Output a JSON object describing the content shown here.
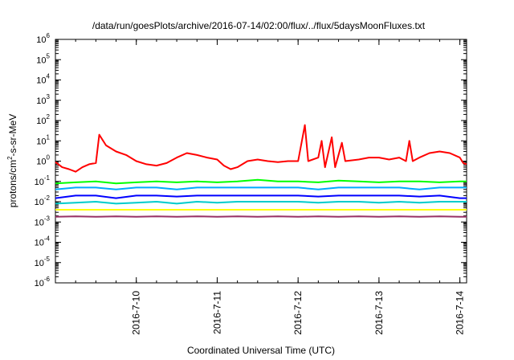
{
  "chart_data": {
    "type": "line",
    "title": "/data/run/goesPlots/archive/2016-07-14/02:00/flux/../flux/5daysMoonFluxes.txt",
    "xlabel": "Coordinated Universal Time (UTC)",
    "ylabel": {
      "base": "protons/cm",
      "sup": "2",
      "rest": "-s-sr-MeV"
    },
    "y_scale": "log",
    "ylim": [
      1e-06,
      1000000.0
    ],
    "xlim": [
      "2016-07-09T00:00",
      "2016-07-14T02:00"
    ],
    "grid": false,
    "legend": "none",
    "y_ticks": [
      {
        "exp": -6,
        "base": "10",
        "sup": "-6"
      },
      {
        "exp": -5,
        "base": "10",
        "sup": "-5"
      },
      {
        "exp": -4,
        "base": "10",
        "sup": "-4"
      },
      {
        "exp": -3,
        "base": "10",
        "sup": "-3"
      },
      {
        "exp": -2,
        "base": "10",
        "sup": "-2"
      },
      {
        "exp": -1,
        "base": "10",
        "sup": "-1"
      },
      {
        "exp": 0,
        "base": "10",
        "sup": "0"
      },
      {
        "exp": 1,
        "base": "10",
        "sup": "1"
      },
      {
        "exp": 2,
        "base": "10",
        "sup": "2"
      },
      {
        "exp": 3,
        "base": "10",
        "sup": "3"
      },
      {
        "exp": 4,
        "base": "10",
        "sup": "4"
      },
      {
        "exp": 5,
        "base": "10",
        "sup": "5"
      },
      {
        "exp": 6,
        "base": "10",
        "sup": "6"
      }
    ],
    "x_ticks": [
      {
        "label": "2016-7-10",
        "at": "2016-07-10T00:00"
      },
      {
        "label": "2016-7-11",
        "at": "2016-07-11T00:00"
      },
      {
        "label": "2016-7-12",
        "at": "2016-07-12T00:00"
      },
      {
        "label": "2016-7-13",
        "at": "2016-07-13T00:00"
      },
      {
        "label": "2016-7-14",
        "at": "2016-07-14T00:00"
      }
    ],
    "series": [
      {
        "color": "#00ff00",
        "points": [
          [
            "2016-07-09T00:00",
            0.08
          ],
          [
            "2016-07-09T06:00",
            0.09
          ],
          [
            "2016-07-09T12:00",
            0.1
          ],
          [
            "2016-07-09T18:00",
            0.08
          ],
          [
            "2016-07-10T00:00",
            0.09
          ],
          [
            "2016-07-10T06:00",
            0.1
          ],
          [
            "2016-07-10T12:00",
            0.09
          ],
          [
            "2016-07-10T18:00",
            0.1
          ],
          [
            "2016-07-11T00:00",
            0.09
          ],
          [
            "2016-07-11T06:00",
            0.1
          ],
          [
            "2016-07-11T12:00",
            0.12
          ],
          [
            "2016-07-11T18:00",
            0.1
          ],
          [
            "2016-07-12T00:00",
            0.1
          ],
          [
            "2016-07-12T06:00",
            0.09
          ],
          [
            "2016-07-12T12:00",
            0.11
          ],
          [
            "2016-07-12T18:00",
            0.1
          ],
          [
            "2016-07-13T00:00",
            0.09
          ],
          [
            "2016-07-13T06:00",
            0.1
          ],
          [
            "2016-07-13T12:00",
            0.1
          ],
          [
            "2016-07-13T18:00",
            0.09
          ],
          [
            "2016-07-14T00:00",
            0.1
          ],
          [
            "2016-07-14T02:00",
            0.1
          ]
        ]
      },
      {
        "color": "#00aaff",
        "points": [
          [
            "2016-07-09T00:00",
            0.04
          ],
          [
            "2016-07-09T06:00",
            0.05
          ],
          [
            "2016-07-09T12:00",
            0.05
          ],
          [
            "2016-07-09T18:00",
            0.04
          ],
          [
            "2016-07-10T00:00",
            0.05
          ],
          [
            "2016-07-10T06:00",
            0.05
          ],
          [
            "2016-07-10T12:00",
            0.04
          ],
          [
            "2016-07-10T18:00",
            0.05
          ],
          [
            "2016-07-11T00:00",
            0.05
          ],
          [
            "2016-07-11T06:00",
            0.05
          ],
          [
            "2016-07-11T12:00",
            0.05
          ],
          [
            "2016-07-11T18:00",
            0.05
          ],
          [
            "2016-07-12T00:00",
            0.05
          ],
          [
            "2016-07-12T06:00",
            0.04
          ],
          [
            "2016-07-12T12:00",
            0.05
          ],
          [
            "2016-07-12T18:00",
            0.05
          ],
          [
            "2016-07-13T00:00",
            0.05
          ],
          [
            "2016-07-13T06:00",
            0.05
          ],
          [
            "2016-07-13T12:00",
            0.04
          ],
          [
            "2016-07-13T18:00",
            0.05
          ],
          [
            "2016-07-14T00:00",
            0.05
          ],
          [
            "2016-07-14T02:00",
            0.05
          ]
        ]
      },
      {
        "color": "#0000ff",
        "points": [
          [
            "2016-07-09T00:00",
            0.015
          ],
          [
            "2016-07-09T06:00",
            0.02
          ],
          [
            "2016-07-09T12:00",
            0.02
          ],
          [
            "2016-07-09T18:00",
            0.015
          ],
          [
            "2016-07-10T00:00",
            0.02
          ],
          [
            "2016-07-10T06:00",
            0.02
          ],
          [
            "2016-07-10T12:00",
            0.018
          ],
          [
            "2016-07-10T18:00",
            0.02
          ],
          [
            "2016-07-11T00:00",
            0.02
          ],
          [
            "2016-07-11T06:00",
            0.02
          ],
          [
            "2016-07-11T12:00",
            0.02
          ],
          [
            "2016-07-11T18:00",
            0.02
          ],
          [
            "2016-07-12T00:00",
            0.02
          ],
          [
            "2016-07-12T06:00",
            0.018
          ],
          [
            "2016-07-12T12:00",
            0.02
          ],
          [
            "2016-07-12T18:00",
            0.02
          ],
          [
            "2016-07-13T00:00",
            0.02
          ],
          [
            "2016-07-13T06:00",
            0.02
          ],
          [
            "2016-07-13T12:00",
            0.018
          ],
          [
            "2016-07-13T18:00",
            0.02
          ],
          [
            "2016-07-14T00:00",
            0.015
          ],
          [
            "2016-07-14T02:00",
            0.015
          ]
        ]
      },
      {
        "color": "#00cccc",
        "points": [
          [
            "2016-07-09T00:00",
            0.008
          ],
          [
            "2016-07-09T06:00",
            0.009
          ],
          [
            "2016-07-09T12:00",
            0.01
          ],
          [
            "2016-07-09T18:00",
            0.008
          ],
          [
            "2016-07-10T00:00",
            0.009
          ],
          [
            "2016-07-10T06:00",
            0.01
          ],
          [
            "2016-07-10T12:00",
            0.008
          ],
          [
            "2016-07-10T18:00",
            0.01
          ],
          [
            "2016-07-11T00:00",
            0.009
          ],
          [
            "2016-07-11T06:00",
            0.01
          ],
          [
            "2016-07-11T12:00",
            0.01
          ],
          [
            "2016-07-11T18:00",
            0.01
          ],
          [
            "2016-07-12T00:00",
            0.01
          ],
          [
            "2016-07-12T06:00",
            0.009
          ],
          [
            "2016-07-12T12:00",
            0.01
          ],
          [
            "2016-07-12T18:00",
            0.01
          ],
          [
            "2016-07-13T00:00",
            0.009
          ],
          [
            "2016-07-13T06:00",
            0.01
          ],
          [
            "2016-07-13T12:00",
            0.009
          ],
          [
            "2016-07-13T18:00",
            0.01
          ],
          [
            "2016-07-14T00:00",
            0.01
          ],
          [
            "2016-07-14T02:00",
            0.01
          ]
        ]
      },
      {
        "color": "#ffff00",
        "points": [
          [
            "2016-07-09T00:00",
            0.004
          ],
          [
            "2016-07-09T12:00",
            0.004
          ],
          [
            "2016-07-10T00:00",
            0.004
          ],
          [
            "2016-07-10T12:00",
            0.004
          ],
          [
            "2016-07-11T00:00",
            0.004
          ],
          [
            "2016-07-11T12:00",
            0.004
          ],
          [
            "2016-07-12T00:00",
            0.004
          ],
          [
            "2016-07-12T12:00",
            0.004
          ],
          [
            "2016-07-13T00:00",
            0.004
          ],
          [
            "2016-07-13T12:00",
            0.004
          ],
          [
            "2016-07-14T00:00",
            0.004
          ],
          [
            "2016-07-14T02:00",
            0.004
          ]
        ]
      },
      {
        "color": "#993366",
        "points": [
          [
            "2016-07-09T00:00",
            0.0018
          ],
          [
            "2016-07-09T06:00",
            0.0019
          ],
          [
            "2016-07-09T12:00",
            0.0018
          ],
          [
            "2016-07-09T18:00",
            0.0019
          ],
          [
            "2016-07-10T00:00",
            0.0018
          ],
          [
            "2016-07-10T06:00",
            0.0019
          ],
          [
            "2016-07-10T12:00",
            0.0018
          ],
          [
            "2016-07-10T18:00",
            0.0019
          ],
          [
            "2016-07-11T00:00",
            0.0018
          ],
          [
            "2016-07-11T06:00",
            0.0019
          ],
          [
            "2016-07-11T12:00",
            0.0018
          ],
          [
            "2016-07-11T18:00",
            0.0019
          ],
          [
            "2016-07-12T00:00",
            0.0018
          ],
          [
            "2016-07-12T06:00",
            0.0019
          ],
          [
            "2016-07-12T12:00",
            0.0018
          ],
          [
            "2016-07-12T18:00",
            0.0019
          ],
          [
            "2016-07-13T00:00",
            0.0018
          ],
          [
            "2016-07-13T06:00",
            0.0019
          ],
          [
            "2016-07-13T12:00",
            0.0018
          ],
          [
            "2016-07-13T18:00",
            0.0019
          ],
          [
            "2016-07-14T00:00",
            0.0018
          ],
          [
            "2016-07-14T02:00",
            0.0018
          ]
        ]
      },
      {
        "color": "#ff0000",
        "points": [
          [
            "2016-07-09T00:00",
            0.9
          ],
          [
            "2016-07-09T02:00",
            0.5
          ],
          [
            "2016-07-09T04:00",
            0.4
          ],
          [
            "2016-07-09T06:00",
            0.3
          ],
          [
            "2016-07-09T08:00",
            0.5
          ],
          [
            "2016-07-09T10:00",
            0.7
          ],
          [
            "2016-07-09T12:00",
            0.8
          ],
          [
            "2016-07-09T13:00",
            20
          ],
          [
            "2016-07-09T15:00",
            6
          ],
          [
            "2016-07-09T18:00",
            3
          ],
          [
            "2016-07-09T21:00",
            2
          ],
          [
            "2016-07-10T00:00",
            1
          ],
          [
            "2016-07-10T03:00",
            0.7
          ],
          [
            "2016-07-10T06:00",
            0.6
          ],
          [
            "2016-07-10T09:00",
            0.8
          ],
          [
            "2016-07-10T12:00",
            1.5
          ],
          [
            "2016-07-10T15:00",
            2.5
          ],
          [
            "2016-07-10T18:00",
            2
          ],
          [
            "2016-07-10T21:00",
            1.5
          ],
          [
            "2016-07-11T00:00",
            1.2
          ],
          [
            "2016-07-11T02:00",
            0.6
          ],
          [
            "2016-07-11T04:00",
            0.4
          ],
          [
            "2016-07-11T06:00",
            0.5
          ],
          [
            "2016-07-11T09:00",
            1
          ],
          [
            "2016-07-11T12:00",
            1.2
          ],
          [
            "2016-07-11T15:00",
            1
          ],
          [
            "2016-07-11T18:00",
            0.9
          ],
          [
            "2016-07-11T21:00",
            1
          ],
          [
            "2016-07-12T00:00",
            1
          ],
          [
            "2016-07-12T02:00",
            60
          ],
          [
            "2016-07-12T03:00",
            1
          ],
          [
            "2016-07-12T06:00",
            1.5
          ],
          [
            "2016-07-12T07:00",
            10
          ],
          [
            "2016-07-12T08:00",
            0.5
          ],
          [
            "2016-07-12T10:00",
            15
          ],
          [
            "2016-07-12T11:00",
            0.5
          ],
          [
            "2016-07-12T13:00",
            8
          ],
          [
            "2016-07-12T14:00",
            1
          ],
          [
            "2016-07-12T18:00",
            1.2
          ],
          [
            "2016-07-12T21:00",
            1.5
          ],
          [
            "2016-07-13T00:00",
            1.5
          ],
          [
            "2016-07-13T03:00",
            1.2
          ],
          [
            "2016-07-13T06:00",
            1.5
          ],
          [
            "2016-07-13T08:00",
            1
          ],
          [
            "2016-07-13T09:00",
            10
          ],
          [
            "2016-07-13T10:00",
            1
          ],
          [
            "2016-07-13T12:00",
            1.5
          ],
          [
            "2016-07-13T15:00",
            2.5
          ],
          [
            "2016-07-13T18:00",
            3
          ],
          [
            "2016-07-13T21:00",
            2.5
          ],
          [
            "2016-07-14T00:00",
            1.5
          ],
          [
            "2016-07-14T01:00",
            0.8
          ],
          [
            "2016-07-14T02:00",
            0.7
          ]
        ]
      }
    ]
  }
}
